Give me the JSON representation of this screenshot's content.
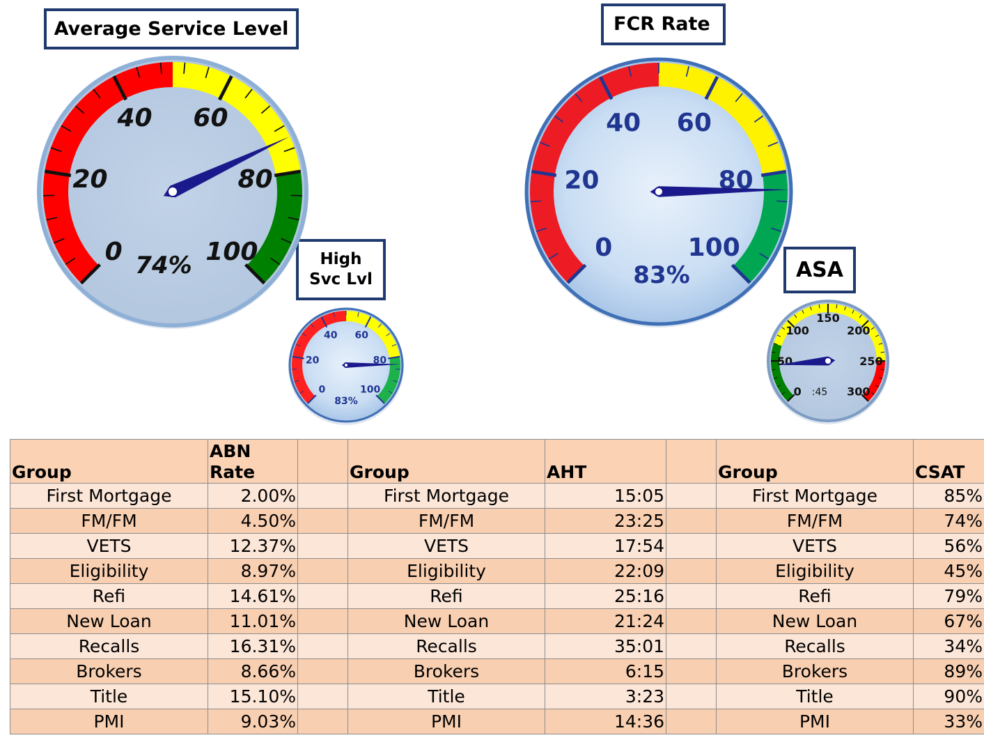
{
  "gauges": {
    "service_level": {
      "title": "Average Service Level",
      "value_text": "74%",
      "ticks": [
        "0",
        "20",
        "40",
        "60",
        "80",
        "100"
      ]
    },
    "high_svc_lvl": {
      "title_line1": "High",
      "title_line2": "Svc Lvl",
      "value_text": "83%",
      "ticks": [
        "0",
        "20",
        "40",
        "60",
        "80",
        "100"
      ]
    },
    "fcr_rate": {
      "title": "FCR Rate",
      "value_text": "83%",
      "ticks": [
        "0",
        "20",
        "40",
        "60",
        "80",
        "100"
      ]
    },
    "asa": {
      "title": "ASA",
      "value_text": ":45",
      "ticks": [
        "0",
        "50",
        "100",
        "150",
        "200",
        "250",
        "300"
      ]
    }
  },
  "chart_data": [
    {
      "type": "gauge",
      "title": "Average Service Level",
      "value": 74,
      "unit": "%",
      "range": [
        0,
        100
      ],
      "bands": [
        {
          "from": 0,
          "to": 50,
          "color": "#ff0000"
        },
        {
          "from": 50,
          "to": 80,
          "color": "#ffff00"
        },
        {
          "from": 80,
          "to": 100,
          "color": "#008000"
        }
      ]
    },
    {
      "type": "gauge",
      "title": "High Svc Lvl",
      "value": 83,
      "unit": "%",
      "range": [
        0,
        100
      ],
      "bands": [
        {
          "from": 0,
          "to": 50,
          "color": "#ff2020"
        },
        {
          "from": 50,
          "to": 80,
          "color": "#ffff00"
        },
        {
          "from": 80,
          "to": 100,
          "color": "#1db14b"
        }
      ]
    },
    {
      "type": "gauge",
      "title": "FCR Rate",
      "value": 83,
      "unit": "%",
      "range": [
        0,
        100
      ],
      "bands": [
        {
          "from": 0,
          "to": 50,
          "color": "#ed1c24"
        },
        {
          "from": 50,
          "to": 80,
          "color": "#fff200"
        },
        {
          "from": 80,
          "to": 100,
          "color": "#00a651"
        }
      ]
    },
    {
      "type": "gauge",
      "title": "ASA",
      "value": 45,
      "unit": "seconds",
      "range": [
        0,
        300
      ],
      "bands": [
        {
          "from": 0,
          "to": 70,
          "color": "#008000"
        },
        {
          "from": 70,
          "to": 250,
          "color": "#ffff00"
        },
        {
          "from": 250,
          "to": 300,
          "color": "#ff0000"
        }
      ]
    },
    {
      "type": "table",
      "columns": [
        "Group",
        "ABN Rate",
        "Group",
        "AHT",
        "Group",
        "CSAT"
      ],
      "rows": [
        [
          "First Mortgage",
          "2.00%",
          "First Mortgage",
          "15:05",
          "First Mortgage",
          "85%"
        ],
        [
          "FM/FM",
          "4.50%",
          "FM/FM",
          "23:25",
          "FM/FM",
          "74%"
        ],
        [
          "VETS",
          "12.37%",
          "VETS",
          "17:54",
          "VETS",
          "56%"
        ],
        [
          "Eligibility",
          "8.97%",
          "Eligibility",
          "22:09",
          "Eligibility",
          "45%"
        ],
        [
          "Refi",
          "14.61%",
          "Refi",
          "25:16",
          "Refi",
          "79%"
        ],
        [
          "New Loan",
          "11.01%",
          "New Loan",
          "21:24",
          "New Loan",
          "67%"
        ],
        [
          "Recalls",
          "16.31%",
          "Recalls",
          "35:01",
          "Recalls",
          "34%"
        ],
        [
          "Brokers",
          "8.66%",
          "Brokers",
          "6:15",
          "Brokers",
          "89%"
        ],
        [
          "Title",
          "15.10%",
          "Title",
          "3:23",
          "Title",
          "90%"
        ],
        [
          "PMI",
          "9.03%",
          "PMI",
          "14:36",
          "PMI",
          "33%"
        ]
      ]
    }
  ],
  "table": {
    "headers": {
      "group": "Group",
      "abn_line1": "ABN",
      "abn_line2": "Rate",
      "aht": "AHT",
      "csat": "CSAT"
    }
  },
  "colors": {
    "header_bg": "#fbd2b4",
    "row_light": "#fce6d8",
    "row_dark": "#f9cfb1",
    "title_border": "#1f3a6e",
    "needle": "#1a1a8c"
  }
}
